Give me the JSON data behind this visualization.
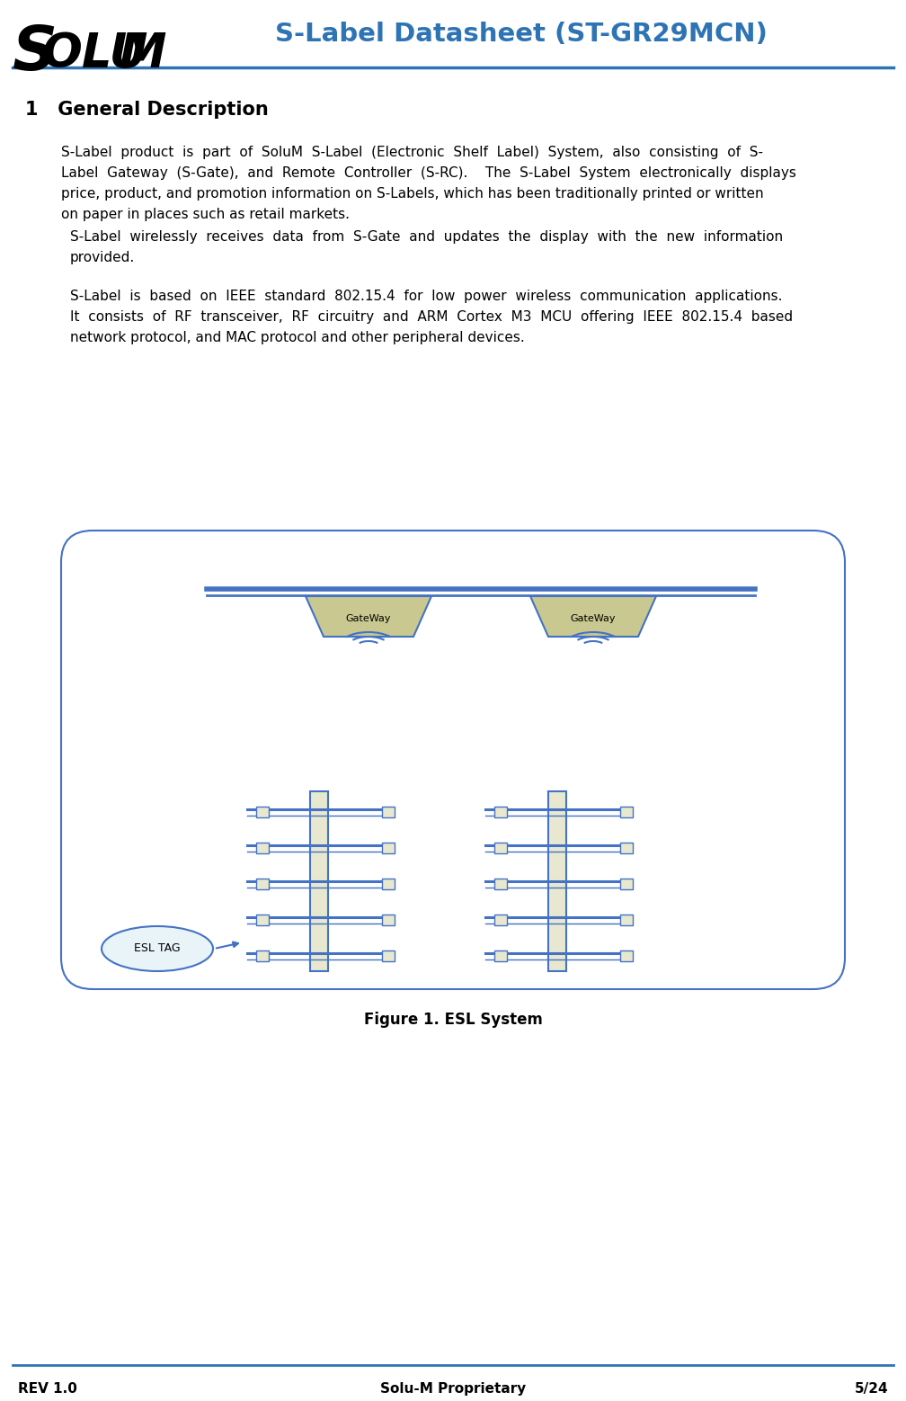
{
  "title": "S-Label Datasheet (ST-GR29MCN)",
  "title_color": "#2E74B5",
  "section_title": "1   General Description",
  "para1_lines": [
    "S-Label  product  is  part  of  SoluM  S-Label  (Electronic  Shelf  Label)  System,  also  consisting  of  S-",
    "Label  Gateway  (S-Gate),  and  Remote  Controller  (S-RC).    The  S-Label  System  electronically  displays",
    "price, product, and promotion information on S-Labels, which has been traditionally printed or written",
    "on paper in places such as retail markets."
  ],
  "para2_lines": [
    "S-Label  wirelessly  receives  data  from  S-Gate  and  updates  the  display  with  the  new  information",
    "provided."
  ],
  "para3_lines": [
    "S-Label  is  based  on  IEEE  standard  802.15.4  for  low  power  wireless  communication  applications.",
    "It  consists  of  RF  transceiver,  RF  circuitry  and  ARM  Cortex  M3  MCU  offering  IEEE  802.15.4  based",
    "network protocol, and MAC protocol and other peripheral devices."
  ],
  "figure_caption": "Figure 1. ESL System",
  "footer_left": "REV 1.0",
  "footer_center": "Solu-M Proprietary",
  "footer_right": "5/24",
  "header_line_color": "#2E74B5",
  "footer_line_color": "#2E74B5",
  "bg_color": "#ffffff",
  "text_color": "#000000",
  "diagram_border_color": "#4472C4",
  "gateway_fill": "#C8C890",
  "gateway_stroke": "#4472C4",
  "shelf_fill": "#E8E8D0",
  "shelf_stroke": "#4472C4",
  "esl_bubble_fill": "#E8F4F8",
  "esl_bubble_stroke": "#4472C4",
  "rail_color": "#4472C4",
  "wifi_color": "#4472C4",
  "logo_s_color": "#000000",
  "logo_text_color": "#000000"
}
